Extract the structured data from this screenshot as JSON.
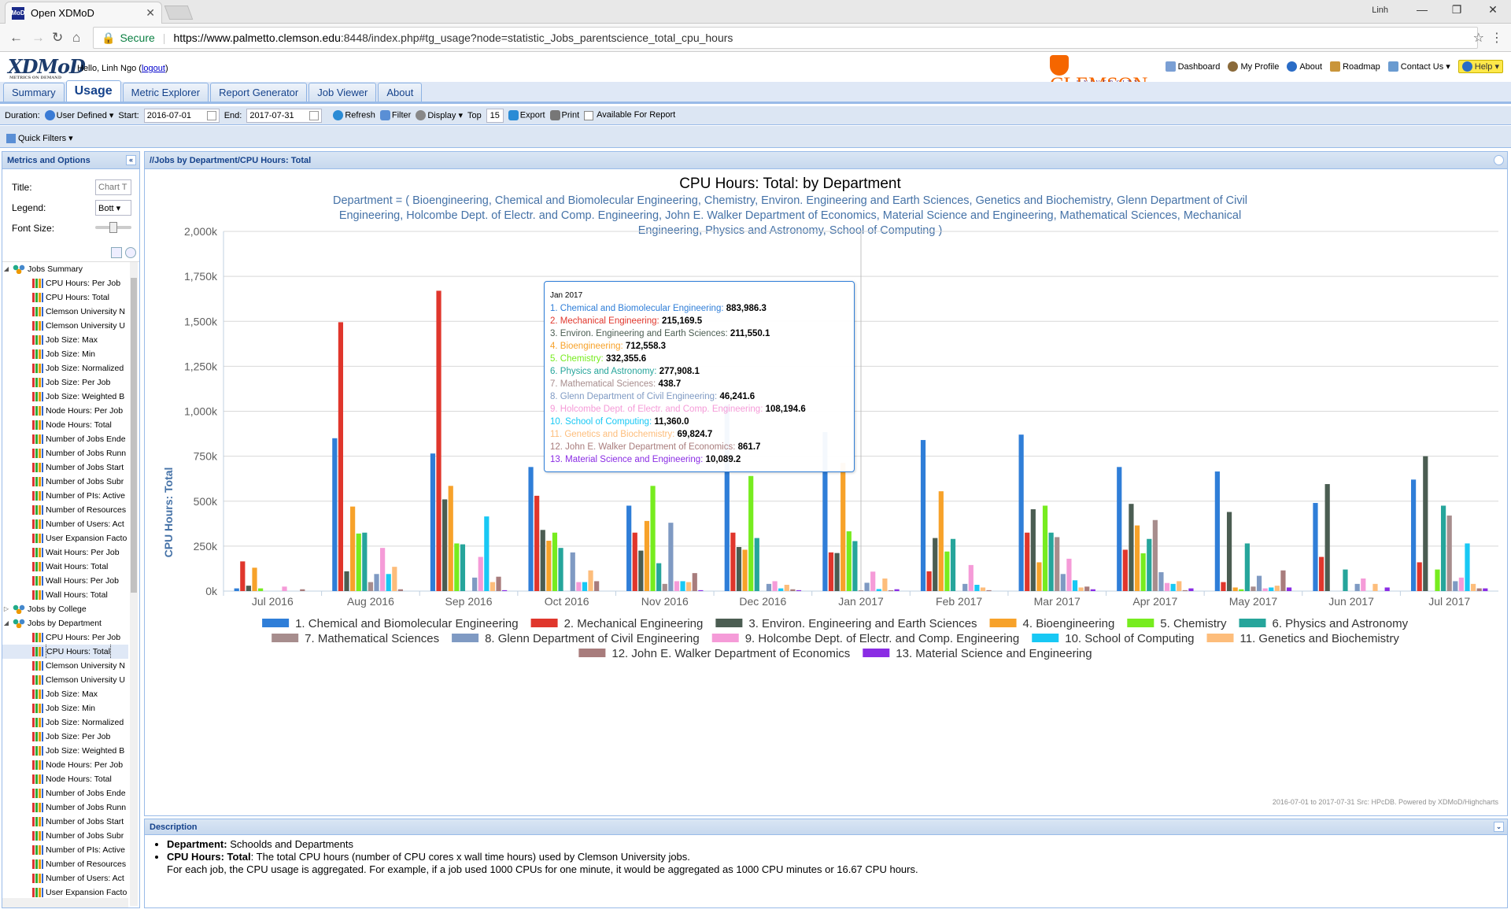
{
  "browser": {
    "tab_title": "Open XDMoD",
    "favicon_text": "MoD",
    "user_chip": "Linh",
    "secure_label": "Secure",
    "url_prefix": "https://www.palmetto.clemson.edu",
    "url_rest": ":8448/index.php#tg_usage?node=statistic_Jobs_parentscience_total_cpu_hours"
  },
  "app": {
    "logo": "XDMoD",
    "logo_tag": "METRICS ON DEMAND",
    "hello": "Hello, Linh Ngo",
    "logout": "logout",
    "clemson": "CLEMSON",
    "clemson_sub": "UNIVERSITY",
    "links": [
      "Dashboard",
      "My Profile",
      "About",
      "Roadmap",
      "Contact Us ▾",
      "Help ▾"
    ]
  },
  "tabs": [
    "Summary",
    "Usage",
    "Metric Explorer",
    "Report Generator",
    "Job Viewer",
    "About"
  ],
  "toolbar": {
    "duration": "Duration:",
    "user_defined": "User Defined ▾",
    "start_label": "Start:",
    "start": "2016-07-01",
    "end_label": "End:",
    "end": "2017-07-31",
    "refresh": "Refresh",
    "filter": "Filter",
    "display": "Display ▾",
    "top_label": "Top",
    "top": "15",
    "export": "Export",
    "print": "Print",
    "available": "Available For Report",
    "quick_filters": "Quick Filters ▾"
  },
  "left": {
    "title": "Metrics and Options",
    "title_label": "Title:",
    "title_placeholder": "Chart T",
    "legend_label": "Legend:",
    "legend_value": "Bott",
    "font_label": "Font Size:",
    "tree": [
      {
        "t": "group",
        "label": "Jobs Summary",
        "exp": "◢"
      },
      {
        "t": "leaf",
        "label": "CPU Hours: Per Job"
      },
      {
        "t": "leaf",
        "label": "CPU Hours: Total"
      },
      {
        "t": "leaf",
        "label": "Clemson University N"
      },
      {
        "t": "leaf",
        "label": "Clemson University U"
      },
      {
        "t": "leaf",
        "label": "Job Size: Max"
      },
      {
        "t": "leaf",
        "label": "Job Size: Min"
      },
      {
        "t": "leaf",
        "label": "Job Size: Normalized"
      },
      {
        "t": "leaf",
        "label": "Job Size: Per Job"
      },
      {
        "t": "leaf",
        "label": "Job Size: Weighted B"
      },
      {
        "t": "leaf",
        "label": "Node Hours: Per Job"
      },
      {
        "t": "leaf",
        "label": "Node Hours: Total"
      },
      {
        "t": "leaf",
        "label": "Number of Jobs Ende"
      },
      {
        "t": "leaf",
        "label": "Number of Jobs Runn"
      },
      {
        "t": "leaf",
        "label": "Number of Jobs Start"
      },
      {
        "t": "leaf",
        "label": "Number of Jobs Subr"
      },
      {
        "t": "leaf",
        "label": "Number of PIs: Active"
      },
      {
        "t": "leaf",
        "label": "Number of Resources"
      },
      {
        "t": "leaf",
        "label": "Number of Users: Act"
      },
      {
        "t": "leaf",
        "label": "User Expansion Facto"
      },
      {
        "t": "leaf",
        "label": "Wait Hours: Per Job"
      },
      {
        "t": "leaf",
        "label": "Wait Hours: Total"
      },
      {
        "t": "leaf",
        "label": "Wall Hours: Per Job"
      },
      {
        "t": "leaf",
        "label": "Wall Hours: Total"
      },
      {
        "t": "group",
        "label": "Jobs by College",
        "exp": "▷"
      },
      {
        "t": "group",
        "label": "Jobs by Department",
        "exp": "◢"
      },
      {
        "t": "leaf",
        "label": "CPU Hours: Per Job"
      },
      {
        "t": "leaf",
        "label": "CPU Hours: Total",
        "sel": true
      },
      {
        "t": "leaf",
        "label": "Clemson University N"
      },
      {
        "t": "leaf",
        "label": "Clemson University U"
      },
      {
        "t": "leaf",
        "label": "Job Size: Max"
      },
      {
        "t": "leaf",
        "label": "Job Size: Min"
      },
      {
        "t": "leaf",
        "label": "Job Size: Normalized"
      },
      {
        "t": "leaf",
        "label": "Job Size: Per Job"
      },
      {
        "t": "leaf",
        "label": "Job Size: Weighted B"
      },
      {
        "t": "leaf",
        "label": "Node Hours: Per Job"
      },
      {
        "t": "leaf",
        "label": "Node Hours: Total"
      },
      {
        "t": "leaf",
        "label": "Number of Jobs Ende"
      },
      {
        "t": "leaf",
        "label": "Number of Jobs Runn"
      },
      {
        "t": "leaf",
        "label": "Number of Jobs Start"
      },
      {
        "t": "leaf",
        "label": "Number of Jobs Subr"
      },
      {
        "t": "leaf",
        "label": "Number of PIs: Active"
      },
      {
        "t": "leaf",
        "label": "Number of Resources"
      },
      {
        "t": "leaf",
        "label": "Number of Users: Act"
      },
      {
        "t": "leaf",
        "label": "User Expansion Facto"
      }
    ]
  },
  "main": {
    "panel_title": "//Jobs by Department/CPU Hours: Total",
    "credits": "2016-07-01 to 2017-07-31 Src: HPcDB. Powered by XDMoD/Highcharts"
  },
  "chart_data": {
    "type": "bar",
    "title": "CPU Hours: Total: by Department",
    "subtitle": [
      "Department = ( Bioengineering, Chemical and Biomolecular Engineering, Chemistry, Environ. Engineering and Earth Sciences, Genetics and Biochemistry, Glenn Department of Civil",
      "Engineering, Holcombe Dept. of Electr. and Comp. Engineering, John E. Walker Department of Economics, Material Science and Engineering, Mathematical Sciences, Mechanical",
      "Engineering, Physics and Astronomy, School of Computing )"
    ],
    "ylabel": "CPU Hours: Total",
    "ylim": [
      0,
      2000000
    ],
    "yticks": [
      "0k",
      "250k",
      "500k",
      "750k",
      "1,000k",
      "1,250k",
      "1,500k",
      "1,750k",
      "2,000k"
    ],
    "categories": [
      "Jul 2016",
      "Aug 2016",
      "Sep 2016",
      "Oct 2016",
      "Nov 2016",
      "Dec 2016",
      "Jan 2017",
      "Feb 2017",
      "Mar 2017",
      "Apr 2017",
      "May 2017",
      "Jun 2017",
      "Jul 2017"
    ],
    "legend": "bottom",
    "series": [
      {
        "name": "1. Chemical and Biomolecular Engineering",
        "color": "#2f7ed8",
        "values": [
          15000,
          850000,
          765000,
          690000,
          475000,
          1035000,
          883986.3,
          840000,
          870000,
          690000,
          665000,
          490000,
          620000
        ]
      },
      {
        "name": "2. Mechanical Engineering",
        "color": "#e0362c",
        "values": [
          165000,
          1495000,
          1670000,
          530000,
          325000,
          325000,
          215169.5,
          110000,
          325000,
          230000,
          50000,
          190000,
          160000
        ]
      },
      {
        "name": "3. Environ. Engineering and Earth Sciences",
        "color": "#4b5d52",
        "values": [
          30000,
          110000,
          510000,
          340000,
          225000,
          245000,
          211550.1,
          295000,
          455000,
          485000,
          440000,
          595000,
          750000
        ]
      },
      {
        "name": "4. Bioengineering",
        "color": "#f7a22a",
        "values": [
          130000,
          470000,
          585000,
          280000,
          390000,
          230000,
          712558.3,
          555000,
          160000,
          365000,
          20000,
          0,
          0
        ]
      },
      {
        "name": "5. Chemistry",
        "color": "#77ec1f",
        "values": [
          15000,
          320000,
          265000,
          325000,
          585000,
          640000,
          332355.6,
          220000,
          475000,
          210000,
          10000,
          0,
          120000
        ]
      },
      {
        "name": "6. Physics and Astronomy",
        "color": "#26a59b",
        "values": [
          0,
          325000,
          260000,
          240000,
          155000,
          295000,
          277908.1,
          290000,
          325000,
          290000,
          265000,
          120000,
          475000
        ]
      },
      {
        "name": "7. Mathematical Sciences",
        "color": "#a78d8d",
        "values": [
          0,
          50000,
          0,
          0,
          40000,
          0,
          438.7,
          0,
          300000,
          395000,
          25000,
          0,
          420000
        ]
      },
      {
        "name": "8. Glenn Department of Civil Engineering",
        "color": "#7f9ac3",
        "values": [
          0,
          95000,
          75000,
          215000,
          380000,
          40000,
          46241.6,
          40000,
          95000,
          105000,
          85000,
          40000,
          55000
        ]
      },
      {
        "name": "9. Holcombe Dept. of Electr. and Comp. Engineering",
        "color": "#f59bd8",
        "values": [
          25000,
          240000,
          190000,
          50000,
          55000,
          55000,
          108194.6,
          145000,
          180000,
          45000,
          15000,
          70000,
          75000
        ]
      },
      {
        "name": "10. School of Computing",
        "color": "#18c8f4",
        "values": [
          0,
          95000,
          415000,
          50000,
          55000,
          15000,
          11360,
          35000,
          60000,
          40000,
          20000,
          0,
          265000
        ]
      },
      {
        "name": "11. Genetics and Biochemistry",
        "color": "#fdbd7b",
        "values": [
          0,
          135000,
          50000,
          115000,
          50000,
          35000,
          69824.7,
          20000,
          20000,
          55000,
          30000,
          40000,
          40000
        ]
      },
      {
        "name": "12. John E. Walker Department of Economics",
        "color": "#a87c7c",
        "values": [
          10000,
          10000,
          80000,
          55000,
          100000,
          10000,
          861.7,
          5000,
          25000,
          5000,
          115000,
          0,
          15000
        ]
      },
      {
        "name": "13. Material Science and Engineering",
        "color": "#8a2ce4",
        "values": [
          0,
          0,
          5000,
          0,
          5000,
          5000,
          10089.2,
          0,
          10000,
          15000,
          20000,
          20000,
          15000
        ]
      }
    ],
    "tooltip": {
      "header": "Jan 2017",
      "rows": [
        {
          "label": "1. Chemical and Biomolecular Engineering:",
          "value": "883,986.3"
        },
        {
          "label": "2. Mechanical Engineering:",
          "value": "215,169.5"
        },
        {
          "label": "3. Environ. Engineering and Earth Sciences:",
          "value": "211,550.1"
        },
        {
          "label": "4. Bioengineering:",
          "value": "712,558.3"
        },
        {
          "label": "5. Chemistry:",
          "value": "332,355.6"
        },
        {
          "label": "6. Physics and Astronomy:",
          "value": "277,908.1"
        },
        {
          "label": "7. Mathematical Sciences:",
          "value": "438.7"
        },
        {
          "label": "8. Glenn Department of Civil Engineering:",
          "value": "46,241.6"
        },
        {
          "label": "9. Holcombe Dept. of Electr. and Comp. Engineering:",
          "value": "108,194.6"
        },
        {
          "label": "10. School of Computing:",
          "value": "11,360.0"
        },
        {
          "label": "11. Genetics and Biochemistry:",
          "value": "69,824.7"
        },
        {
          "label": "12. John E. Walker Department of Economics:",
          "value": "861.7"
        },
        {
          "label": "13. Material Science and Engineering:",
          "value": "10,089.2"
        }
      ]
    }
  },
  "description": {
    "title": "Description",
    "dept_label": "Department:",
    "dept_text": " Schoolds and Departments",
    "cpu_label": "CPU Hours: Total",
    "cpu_text": ": The total CPU hours (number of CPU cores x wall time hours) used by Clemson University jobs.",
    "cpu_text2": "For each job, the CPU usage is aggregated. For example, if a job used 1000 CPUs for one minute, it would be aggregated as 1000 CPU minutes or 16.67 CPU hours."
  }
}
